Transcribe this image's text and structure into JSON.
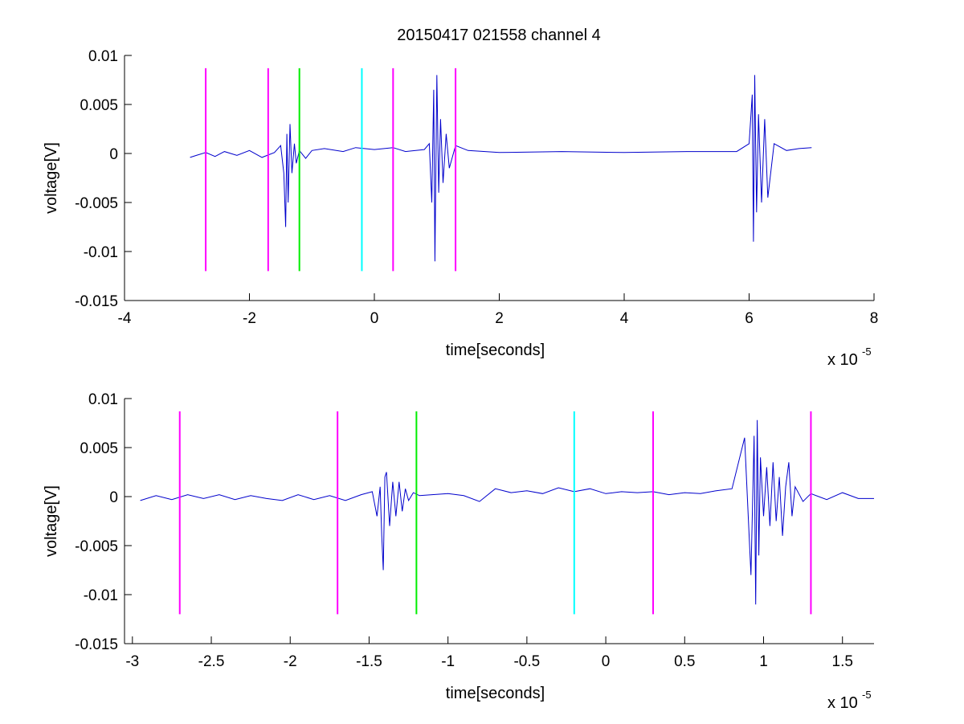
{
  "figure_title": "20150417 021558 channel 4",
  "chart_data": [
    {
      "type": "line",
      "title": "20150417 021558 channel 4",
      "xlabel": "time[seconds]",
      "ylabel": "voltage[V]",
      "x_exponent_base": "x 10",
      "x_exponent": "-5",
      "xlim": [
        -4,
        8
      ],
      "ylim": [
        -0.015,
        0.01
      ],
      "xticks": [
        -4,
        -2,
        0,
        2,
        4,
        6,
        8
      ],
      "xtick_labels": [
        "-4",
        "-2",
        "0",
        "2",
        "4",
        "6",
        "8"
      ],
      "yticks": [
        0.01,
        0.005,
        0,
        -0.005,
        -0.01,
        -0.015
      ],
      "ytick_labels": [
        "0.01",
        "0.005",
        "0",
        "-0.005",
        "-0.01",
        "-0.015"
      ],
      "grid": false,
      "series": [
        {
          "color": "#0000cc",
          "x": [
            -2.95,
            -2.85,
            -2.7,
            -2.55,
            -2.4,
            -2.2,
            -2.0,
            -1.8,
            -1.6,
            -1.5,
            -1.45,
            -1.42,
            -1.4,
            -1.38,
            -1.35,
            -1.32,
            -1.28,
            -1.25,
            -1.2,
            -1.1,
            -1.0,
            -0.8,
            -0.5,
            -0.3,
            0.0,
            0.3,
            0.5,
            0.8,
            0.88,
            0.92,
            0.95,
            0.97,
            1.0,
            1.03,
            1.06,
            1.1,
            1.15,
            1.2,
            1.3,
            1.5,
            2.0,
            3.0,
            4.0,
            5.0,
            5.8,
            6.0,
            6.05,
            6.07,
            6.09,
            6.12,
            6.15,
            6.2,
            6.25,
            6.3,
            6.4,
            6.6,
            6.8,
            7.0
          ],
          "values": [
            -0.0004,
            -0.0002,
            0.0001,
            -0.0003,
            0.0002,
            -0.0002,
            0.0003,
            -0.0004,
            0.0001,
            0.0008,
            -0.002,
            -0.0075,
            0.002,
            -0.005,
            0.003,
            -0.002,
            0.001,
            -0.001,
            0.0003,
            -0.0005,
            0.0003,
            0.0005,
            0.0002,
            0.0006,
            0.0004,
            0.0006,
            0.0002,
            0.0004,
            0.001,
            -0.005,
            0.0065,
            -0.011,
            0.008,
            -0.004,
            0.0035,
            -0.003,
            0.002,
            -0.0015,
            0.0008,
            0.0003,
            0.0001,
            0.0002,
            0.0001,
            0.0002,
            0.0002,
            0.001,
            0.006,
            -0.009,
            0.008,
            -0.006,
            0.004,
            -0.005,
            0.0035,
            -0.0045,
            0.001,
            0.0003,
            0.0005,
            0.0006
          ]
        }
      ],
      "markers": [
        {
          "x": -2.7,
          "y_range": [
            -0.012,
            0.0087
          ],
          "color": "#ff00ff"
        },
        {
          "x": -1.7,
          "y_range": [
            -0.012,
            0.0087
          ],
          "color": "#ff00ff"
        },
        {
          "x": -1.2,
          "y_range": [
            -0.012,
            0.0087
          ],
          "color": "#00ee00"
        },
        {
          "x": -0.2,
          "y_range": [
            -0.012,
            0.0087
          ],
          "color": "#00ffff"
        },
        {
          "x": 0.3,
          "y_range": [
            -0.012,
            0.0087
          ],
          "color": "#ff00ff"
        },
        {
          "x": 1.3,
          "y_range": [
            -0.012,
            0.0087
          ],
          "color": "#ff00ff"
        }
      ]
    },
    {
      "type": "line",
      "title": "",
      "xlabel": "time[seconds]",
      "ylabel": "voltage[V]",
      "x_exponent_base": "x 10",
      "x_exponent": "-5",
      "xlim": [
        -3.05,
        1.7
      ],
      "ylim": [
        -0.015,
        0.01
      ],
      "xticks": [
        -3,
        -2.5,
        -2,
        -1.5,
        -1,
        -0.5,
        0,
        0.5,
        1,
        1.5
      ],
      "xtick_labels": [
        "-3",
        "-2.5",
        "-2",
        "-1.5",
        "-1",
        "-0.5",
        "0",
        "0.5",
        "1",
        "1.5"
      ],
      "yticks": [
        0.01,
        0.005,
        0,
        -0.005,
        -0.01,
        -0.015
      ],
      "ytick_labels": [
        "0.01",
        "0.005",
        "0",
        "-0.005",
        "-0.01",
        "-0.015"
      ],
      "grid": false,
      "series": [
        {
          "color": "#0000cc",
          "x": [
            -2.95,
            -2.85,
            -2.75,
            -2.65,
            -2.55,
            -2.45,
            -2.35,
            -2.25,
            -2.15,
            -2.05,
            -1.95,
            -1.85,
            -1.75,
            -1.65,
            -1.55,
            -1.48,
            -1.45,
            -1.43,
            -1.42,
            -1.41,
            -1.4,
            -1.39,
            -1.37,
            -1.35,
            -1.33,
            -1.31,
            -1.29,
            -1.27,
            -1.25,
            -1.22,
            -1.18,
            -1.1,
            -1.0,
            -0.9,
            -0.8,
            -0.7,
            -0.6,
            -0.5,
            -0.4,
            -0.3,
            -0.2,
            -0.1,
            0.0,
            0.1,
            0.2,
            0.3,
            0.4,
            0.5,
            0.6,
            0.7,
            0.8,
            0.88,
            0.92,
            0.94,
            0.95,
            0.96,
            0.97,
            0.98,
            1.0,
            1.02,
            1.04,
            1.06,
            1.08,
            1.1,
            1.12,
            1.14,
            1.16,
            1.18,
            1.2,
            1.25,
            1.3,
            1.4,
            1.5,
            1.6,
            1.7
          ],
          "values": [
            -0.0004,
            0.0001,
            -0.0003,
            0.0002,
            -0.0002,
            0.0002,
            -0.0003,
            0.0001,
            -0.0002,
            -0.0004,
            0.0002,
            -0.0003,
            0.0001,
            -0.0004,
            0.0002,
            0.0005,
            -0.002,
            0.001,
            -0.004,
            -0.0075,
            0.002,
            0.0025,
            -0.003,
            0.0015,
            -0.002,
            0.0015,
            -0.0015,
            0.0008,
            -0.0004,
            0.0004,
            0.0001,
            0.0002,
            0.0003,
            0.0001,
            -0.0005,
            0.0008,
            0.0004,
            0.0006,
            0.0003,
            0.0009,
            0.0005,
            0.0008,
            0.0003,
            0.0005,
            0.0004,
            0.0005,
            0.0002,
            0.0004,
            0.0003,
            0.0006,
            0.0008,
            0.006,
            -0.008,
            0.0062,
            -0.011,
            0.0078,
            -0.006,
            0.004,
            -0.002,
            0.003,
            -0.003,
            0.0035,
            -0.0025,
            0.002,
            -0.004,
            0.001,
            0.0035,
            -0.002,
            0.001,
            -0.0005,
            0.0003,
            -0.0003,
            0.0004,
            -0.0002,
            -0.0002
          ]
        }
      ],
      "markers": [
        {
          "x": -2.7,
          "y_range": [
            -0.012,
            0.0087
          ],
          "color": "#ff00ff"
        },
        {
          "x": -1.7,
          "y_range": [
            -0.012,
            0.0087
          ],
          "color": "#ff00ff"
        },
        {
          "x": -1.2,
          "y_range": [
            -0.012,
            0.0087
          ],
          "color": "#00ee00"
        },
        {
          "x": -0.2,
          "y_range": [
            -0.012,
            0.0087
          ],
          "color": "#00ffff"
        },
        {
          "x": 0.3,
          "y_range": [
            -0.012,
            0.0087
          ],
          "color": "#ff00ff"
        },
        {
          "x": 1.3,
          "y_range": [
            -0.012,
            0.0087
          ],
          "color": "#ff00ff"
        }
      ]
    }
  ]
}
